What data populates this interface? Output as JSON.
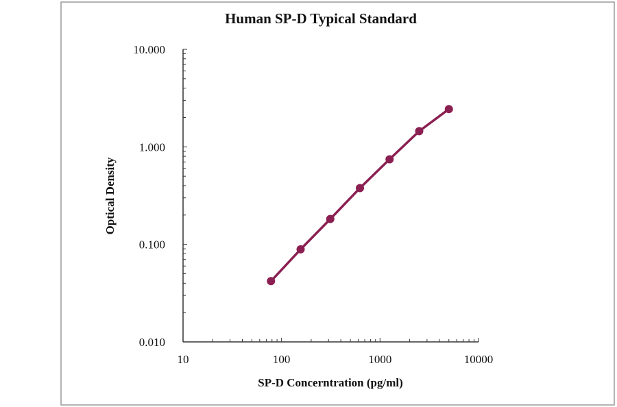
{
  "chart_data": {
    "type": "line",
    "title": "Human SP-D Typical Standard",
    "xlabel": "SP-D Concerntration (pg/ml)",
    "ylabel": "Optical Density",
    "x_scale": "log",
    "y_scale": "log",
    "xlim": [
      10,
      10000
    ],
    "ylim": [
      0.01,
      10
    ],
    "x_ticks": [
      "10",
      "100",
      "1000",
      "10000"
    ],
    "y_ticks": [
      "0.010",
      "0.100",
      "1.000",
      "10.000"
    ],
    "grid": false,
    "legend": "none",
    "markers": true,
    "color": "#8b1f52",
    "series": [
      {
        "x": [
          78.125,
          156.25,
          312.5,
          625,
          1250,
          2500,
          5000
        ],
        "y": [
          0.042,
          0.089,
          0.182,
          0.378,
          0.746,
          1.45,
          2.44
        ]
      }
    ]
  }
}
